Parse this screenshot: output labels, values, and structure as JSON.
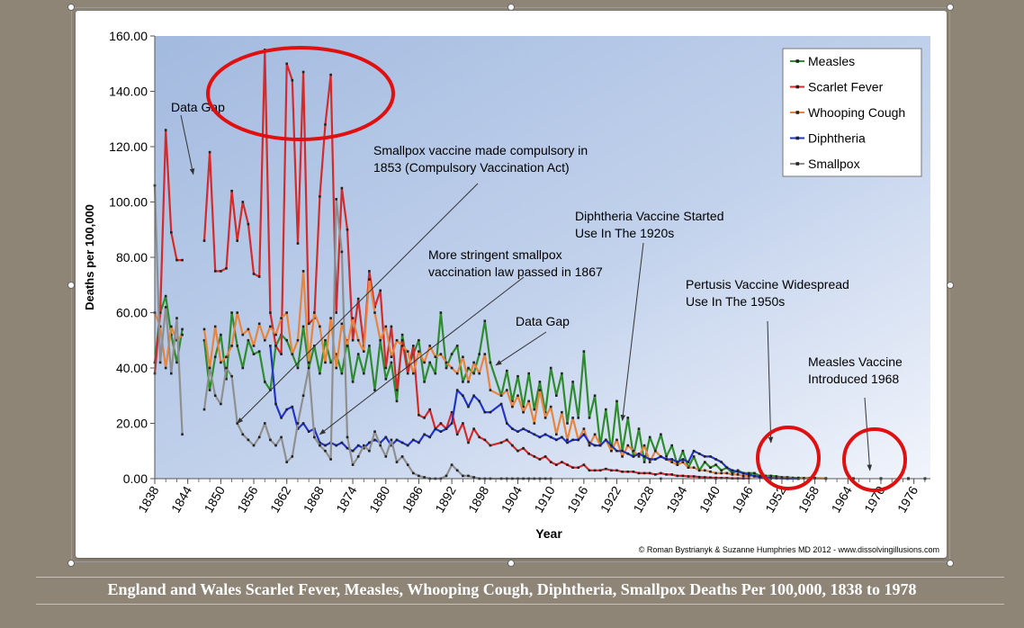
{
  "caption": "England and Wales Scarlet Fever, Measles, Whooping Cough, Diphtheria, Smallpox Deaths Per 100,000, 1838 to 1978",
  "chart_data": {
    "type": "line",
    "ylabel": "Deaths per 100,000",
    "xlabel": "Year",
    "ylim": [
      0,
      160
    ],
    "xlim": [
      1838,
      1979
    ],
    "y_ticks": [
      "0.00",
      "20.00",
      "40.00",
      "60.00",
      "80.00",
      "100.00",
      "120.00",
      "140.00",
      "160.00"
    ],
    "x_ticks": [
      1838,
      1844,
      1850,
      1856,
      1862,
      1868,
      1874,
      1880,
      1886,
      1892,
      1898,
      1904,
      1910,
      1916,
      1922,
      1928,
      1934,
      1940,
      1946,
      1952,
      1958,
      1964,
      1970,
      1976
    ],
    "grid": false,
    "legend_position": "top-right",
    "credit": "© Roman Bystrianyk & Suzanne Humphries MD 2012 - www.dissolvingillusions.com",
    "series": [
      {
        "name": "Measles",
        "color": "#2e8b2e",
        "x": [
          1838,
          1839,
          1840,
          1841,
          1842,
          1843,
          1847,
          1848,
          1849,
          1850,
          1851,
          1852,
          1853,
          1854,
          1855,
          1856,
          1857,
          1858,
          1859,
          1860,
          1861,
          1862,
          1863,
          1864,
          1865,
          1866,
          1867,
          1868,
          1869,
          1870,
          1871,
          1872,
          1873,
          1874,
          1875,
          1876,
          1877,
          1878,
          1879,
          1880,
          1881,
          1882,
          1883,
          1884,
          1885,
          1886,
          1887,
          1888,
          1889,
          1890,
          1891,
          1892,
          1893,
          1894,
          1895,
          1896,
          1897,
          1898,
          1899,
          1901,
          1902,
          1903,
          1904,
          1905,
          1906,
          1907,
          1908,
          1909,
          1910,
          1911,
          1912,
          1913,
          1914,
          1915,
          1916,
          1917,
          1918,
          1919,
          1920,
          1921,
          1922,
          1923,
          1924,
          1925,
          1926,
          1927,
          1928,
          1929,
          1930,
          1931,
          1932,
          1933,
          1934,
          1935,
          1936,
          1937,
          1938,
          1939,
          1940,
          1941,
          1942,
          1943,
          1944,
          1945,
          1946,
          1947,
          1948,
          1949,
          1950,
          1951,
          1952,
          1953,
          1954,
          1955,
          1956,
          1957,
          1958,
          1960,
          1965,
          1970,
          1975,
          1978
        ],
        "y": [
          42,
          60,
          66,
          52,
          42,
          54,
          50,
          32,
          44,
          52,
          36,
          60,
          48,
          40,
          50,
          45,
          46,
          35,
          32,
          48,
          52,
          50,
          45,
          40,
          55,
          40,
          48,
          38,
          50,
          42,
          45,
          38,
          50,
          35,
          45,
          38,
          48,
          32,
          50,
          36,
          42,
          28,
          52,
          40,
          45,
          50,
          35,
          42,
          38,
          60,
          40,
          45,
          48,
          35,
          40,
          38,
          45,
          57,
          42,
          30,
          39,
          28,
          37,
          26,
          38,
          25,
          35,
          24,
          40,
          30,
          38,
          20,
          35,
          22,
          46,
          22,
          30,
          12,
          25,
          10,
          28,
          10,
          22,
          8,
          18,
          6,
          15,
          10,
          16,
          8,
          12,
          5,
          10,
          4,
          8,
          3,
          6,
          4,
          5,
          3,
          4,
          2,
          3,
          2,
          2,
          2,
          1,
          1,
          1,
          0.8,
          0.5,
          0.5,
          0.3,
          0.3,
          0.2,
          0.2,
          0.2,
          0.1,
          0.1,
          0.1,
          0.1,
          0
        ]
      },
      {
        "name": "Scarlet Fever",
        "color": "#d42a2a",
        "x": [
          1838,
          1839,
          1840,
          1841,
          1842,
          1843,
          1847,
          1848,
          1849,
          1850,
          1851,
          1852,
          1853,
          1854,
          1855,
          1856,
          1857,
          1858,
          1859,
          1860,
          1861,
          1862,
          1863,
          1864,
          1865,
          1866,
          1867,
          1868,
          1869,
          1870,
          1871,
          1872,
          1873,
          1874,
          1875,
          1876,
          1877,
          1878,
          1879,
          1880,
          1881,
          1882,
          1883,
          1884,
          1885,
          1886,
          1887,
          1888,
          1889,
          1890,
          1891,
          1892,
          1893,
          1894,
          1895,
          1896,
          1897,
          1898,
          1899,
          1901,
          1902,
          1903,
          1904,
          1905,
          1906,
          1907,
          1908,
          1909,
          1910,
          1911,
          1912,
          1913,
          1914,
          1915,
          1916,
          1917,
          1918,
          1919,
          1920,
          1921,
          1922,
          1923,
          1924,
          1925,
          1926,
          1927,
          1928,
          1929,
          1930,
          1931,
          1932,
          1933,
          1934,
          1935,
          1936,
          1937,
          1938,
          1939,
          1940,
          1941,
          1942,
          1943,
          1944,
          1945,
          1946,
          1950,
          1955,
          1960,
          1965,
          1970,
          1975,
          1978
        ],
        "y": [
          38,
          60,
          126,
          89,
          79,
          79,
          86,
          118,
          75,
          75,
          76,
          104,
          86,
          100,
          92,
          74,
          73,
          155,
          60,
          48,
          45,
          150,
          144,
          85,
          147,
          56,
          58,
          102,
          128,
          146,
          60,
          105,
          90,
          50,
          65,
          48,
          75,
          62,
          68,
          40,
          55,
          32,
          50,
          38,
          48,
          23,
          22,
          25,
          18,
          20,
          18,
          24,
          16,
          20,
          13,
          18,
          15,
          14,
          12,
          13,
          14,
          12,
          10,
          11,
          9,
          8,
          7,
          8,
          6,
          5,
          6,
          5,
          4,
          4,
          5,
          3,
          3,
          3,
          3.5,
          3,
          3,
          2.5,
          2.5,
          2.5,
          2,
          2,
          2,
          1.5,
          2,
          1.5,
          1.5,
          1,
          1,
          0.8,
          0.8,
          0.6,
          0.5,
          0.4,
          0.3,
          0.2,
          0.2,
          0.1,
          0.1,
          0.1,
          0.1,
          0,
          0,
          0,
          0,
          0,
          0,
          0
        ]
      },
      {
        "name": "Whooping Cough",
        "color": "#e8843c",
        "x": [
          1838,
          1839,
          1840,
          1841,
          1842,
          1843,
          1847,
          1848,
          1849,
          1850,
          1851,
          1852,
          1853,
          1854,
          1855,
          1856,
          1857,
          1858,
          1859,
          1860,
          1861,
          1862,
          1863,
          1864,
          1865,
          1866,
          1867,
          1868,
          1869,
          1870,
          1871,
          1872,
          1873,
          1874,
          1875,
          1876,
          1877,
          1878,
          1879,
          1880,
          1881,
          1882,
          1883,
          1884,
          1885,
          1886,
          1887,
          1888,
          1889,
          1890,
          1891,
          1892,
          1893,
          1894,
          1895,
          1896,
          1897,
          1898,
          1899,
          1901,
          1902,
          1903,
          1904,
          1905,
          1906,
          1907,
          1908,
          1909,
          1910,
          1911,
          1912,
          1913,
          1914,
          1915,
          1916,
          1917,
          1918,
          1919,
          1920,
          1921,
          1922,
          1923,
          1924,
          1925,
          1926,
          1927,
          1928,
          1929,
          1930,
          1931,
          1932,
          1933,
          1934,
          1935,
          1936,
          1937,
          1938,
          1939,
          1940,
          1941,
          1942,
          1943,
          1944,
          1945,
          1946,
          1947,
          1948,
          1949,
          1950,
          1951,
          1952,
          1953,
          1954,
          1955,
          1956,
          1958,
          1960,
          1965,
          1970,
          1975,
          1978
        ],
        "y": [
          60,
          55,
          40,
          55,
          50,
          52,
          54,
          40,
          55,
          42,
          44,
          48,
          60,
          52,
          54,
          48,
          56,
          50,
          55,
          52,
          58,
          60,
          45,
          50,
          75,
          42,
          60,
          55,
          42,
          58,
          40,
          56,
          48,
          58,
          50,
          46,
          72,
          60,
          50,
          55,
          44,
          50,
          48,
          46,
          38,
          46,
          42,
          48,
          44,
          45,
          42,
          40,
          38,
          44,
          35,
          42,
          38,
          45,
          32,
          30,
          32,
          26,
          30,
          24,
          28,
          20,
          32,
          22,
          26,
          16,
          24,
          14,
          22,
          14,
          18,
          12,
          16,
          12,
          14,
          10,
          14,
          8,
          12,
          10,
          8,
          12,
          6,
          10,
          8,
          7,
          6,
          5,
          6,
          4,
          4,
          3,
          3,
          2.5,
          2,
          2,
          2,
          1.5,
          1.5,
          1,
          1,
          0.8,
          0.6,
          0.5,
          0.4,
          0.3,
          0.2,
          0.2,
          0.1,
          0.1,
          0.1,
          0.1,
          0.1,
          0,
          0,
          0,
          0
        ]
      },
      {
        "name": "Diphtheria",
        "color": "#2233cc",
        "x": [
          1859,
          1860,
          1861,
          1862,
          1863,
          1864,
          1865,
          1866,
          1867,
          1868,
          1869,
          1870,
          1871,
          1872,
          1873,
          1874,
          1875,
          1876,
          1877,
          1878,
          1879,
          1880,
          1881,
          1882,
          1883,
          1884,
          1885,
          1886,
          1887,
          1888,
          1889,
          1890,
          1891,
          1892,
          1893,
          1894,
          1895,
          1896,
          1897,
          1898,
          1899,
          1901,
          1902,
          1903,
          1904,
          1905,
          1906,
          1907,
          1908,
          1909,
          1910,
          1911,
          1912,
          1913,
          1914,
          1915,
          1916,
          1917,
          1918,
          1919,
          1920,
          1921,
          1922,
          1923,
          1924,
          1925,
          1926,
          1927,
          1928,
          1929,
          1930,
          1931,
          1932,
          1933,
          1934,
          1935,
          1936,
          1937,
          1938,
          1939,
          1940,
          1941,
          1942,
          1943,
          1944,
          1945,
          1946,
          1947,
          1948,
          1949,
          1950,
          1951,
          1952,
          1953,
          1955,
          1960,
          1965,
          1970,
          1975,
          1978
        ],
        "y": [
          48,
          27,
          22,
          25,
          26,
          18,
          20,
          17,
          18,
          13,
          12,
          13,
          12,
          13,
          11,
          10,
          12,
          11,
          13,
          14,
          13,
          15,
          12,
          14,
          13,
          12,
          14,
          13,
          16,
          15,
          18,
          17,
          18,
          20,
          32,
          30,
          26,
          30,
          28,
          24,
          24,
          27,
          20,
          18,
          17,
          18,
          17,
          16,
          15,
          16,
          15,
          14,
          15,
          13,
          14,
          14,
          16,
          13,
          12,
          12,
          14,
          12,
          10,
          10,
          9,
          8,
          9,
          8,
          7,
          7,
          8,
          7,
          7,
          6,
          7,
          6,
          10,
          9,
          8,
          8,
          7,
          6,
          4,
          3,
          2.5,
          2,
          1.5,
          1,
          0.6,
          0.4,
          0.2,
          0.1,
          0.1,
          0,
          0,
          0,
          0,
          0,
          0,
          0
        ]
      },
      {
        "name": "Smallpox",
        "color": "#8f8f8f",
        "x": [
          1838,
          1839,
          1840,
          1841,
          1842,
          1843,
          1847,
          1848,
          1849,
          1850,
          1851,
          1852,
          1853,
          1854,
          1855,
          1856,
          1857,
          1858,
          1859,
          1860,
          1861,
          1862,
          1863,
          1864,
          1865,
          1866,
          1867,
          1868,
          1869,
          1870,
          1871,
          1872,
          1873,
          1874,
          1875,
          1876,
          1877,
          1878,
          1879,
          1880,
          1881,
          1882,
          1883,
          1884,
          1885,
          1886,
          1887,
          1888,
          1889,
          1890,
          1891,
          1892,
          1893,
          1894,
          1895,
          1896,
          1897,
          1898,
          1899,
          1901,
          1902,
          1903,
          1904,
          1905,
          1906,
          1907,
          1908,
          1909,
          1910,
          1920,
          1930,
          1940,
          1950,
          1960,
          1970,
          1978
        ],
        "y": [
          106,
          42,
          62,
          38,
          58,
          16,
          25,
          40,
          30,
          27,
          40,
          37,
          20,
          16,
          14,
          12,
          15,
          20,
          14,
          12,
          15,
          6,
          8,
          20,
          30,
          40,
          15,
          12,
          10,
          7,
          101,
          82,
          15,
          5,
          8,
          12,
          10,
          17,
          12,
          8,
          14,
          6,
          8,
          5,
          2,
          1,
          0.5,
          0,
          0,
          0,
          1,
          5,
          3,
          1,
          1,
          0.5,
          0,
          0,
          0,
          0,
          0,
          0,
          0,
          0,
          0,
          0,
          0,
          0,
          0,
          0,
          0,
          0,
          0,
          0,
          0,
          0
        ]
      }
    ],
    "annotations": [
      {
        "text_lines": [
          "Data Gap"
        ],
        "arrow_to": [
          1845,
          110
        ]
      },
      {
        "text_lines": [
          "Smallpox vaccine made compulsory in",
          "1853 (Compulsory Vaccination Act)"
        ],
        "arrow_to": [
          1853,
          20
        ]
      },
      {
        "text_lines": [
          "More stringent smallpox",
          "vaccination law passed in 1867"
        ],
        "arrow_to": [
          1868,
          16
        ]
      },
      {
        "text_lines": [
          "Data Gap"
        ],
        "arrow_to": [
          1900,
          41
        ]
      },
      {
        "text_lines": [
          "Diphtheria Vaccine Started",
          "Use In The 1920s"
        ],
        "arrow_to": [
          1923,
          21
        ]
      },
      {
        "text_lines": [
          "Pertusis Vaccine Widespread",
          "Use In The 1950s"
        ],
        "arrow_to": [
          1950,
          13
        ]
      },
      {
        "text_lines": [
          "Measles Vaccine",
          "Introduced 1968"
        ],
        "arrow_to": [
          1968,
          3
        ]
      }
    ]
  }
}
